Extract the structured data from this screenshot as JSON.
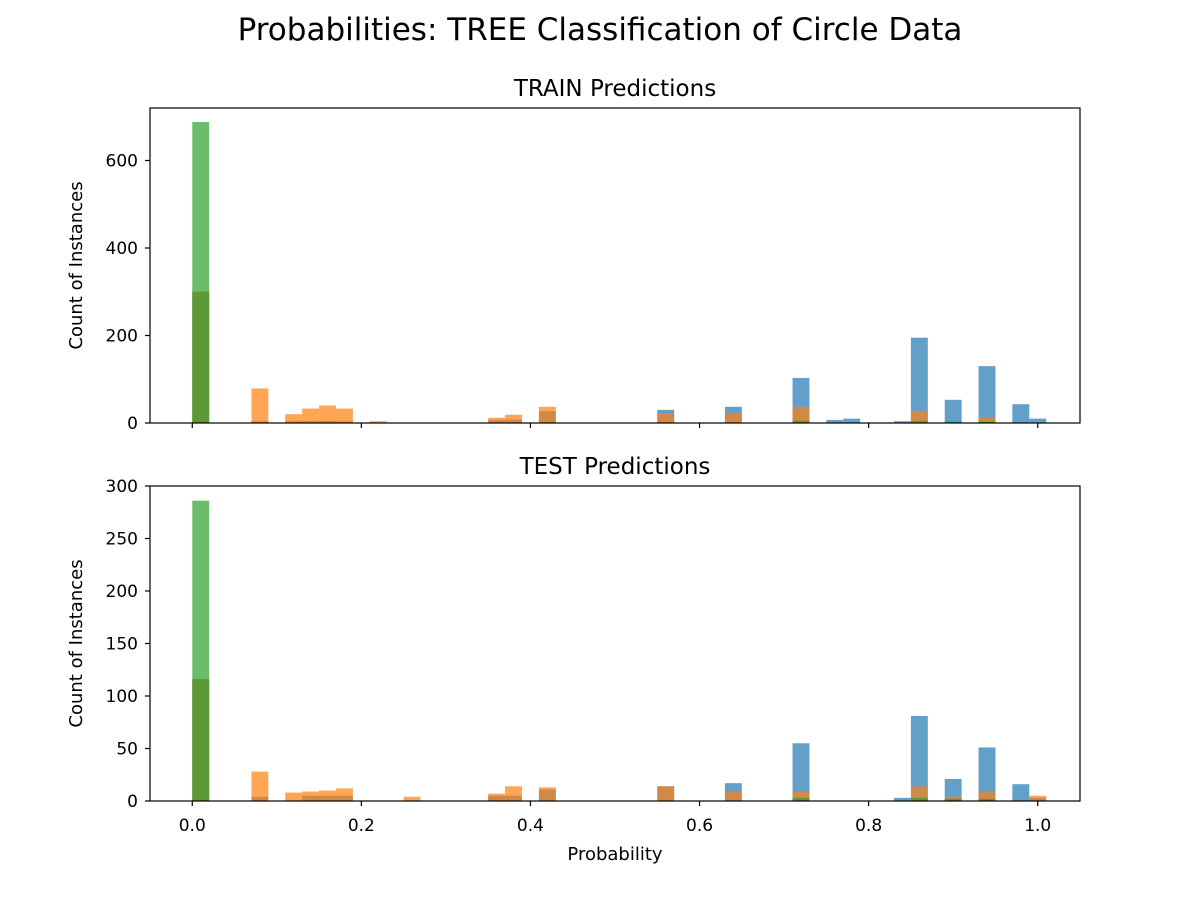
{
  "figure": {
    "suptitle": "Probabilities:  TREE Classification of Circle Data"
  },
  "colors": {
    "blue": "#1f77b4",
    "orange": "#ff7f0e",
    "green": "#2ca02c",
    "bar_alpha": 0.7
  },
  "chart_data": [
    {
      "type": "bar",
      "title": "TRAIN Predictions",
      "xlabel": "",
      "ylabel": "Count of Instances",
      "xlim": [
        -0.05,
        1.05
      ],
      "ylim": [
        0,
        720
      ],
      "yticks": [
        0,
        200,
        400,
        600
      ],
      "xticks": [
        0.0,
        0.2,
        0.4,
        0.6,
        0.8,
        1.0
      ],
      "show_xtick_labels": false,
      "bin_width": 0.02,
      "series": [
        {
          "color": "blue",
          "bins": [
            [
              0.0,
              300
            ],
            [
              0.07,
              4
            ],
            [
              0.11,
              4
            ],
            [
              0.13,
              5
            ],
            [
              0.15,
              5
            ],
            [
              0.17,
              4
            ],
            [
              0.35,
              7
            ],
            [
              0.37,
              8
            ],
            [
              0.41,
              27
            ],
            [
              0.55,
              30
            ],
            [
              0.63,
              37
            ],
            [
              0.71,
              103
            ],
            [
              0.75,
              7
            ],
            [
              0.77,
              10
            ],
            [
              0.83,
              4
            ],
            [
              0.85,
              195
            ],
            [
              0.89,
              53
            ],
            [
              0.93,
              130
            ],
            [
              0.97,
              43
            ],
            [
              0.99,
              10
            ]
          ]
        },
        {
          "color": "orange",
          "bins": [
            [
              0.0,
              300
            ],
            [
              0.07,
              79
            ],
            [
              0.11,
              20
            ],
            [
              0.13,
              33
            ],
            [
              0.15,
              40
            ],
            [
              0.17,
              33
            ],
            [
              0.21,
              4
            ],
            [
              0.35,
              12
            ],
            [
              0.37,
              19
            ],
            [
              0.41,
              37
            ],
            [
              0.55,
              22
            ],
            [
              0.63,
              22
            ],
            [
              0.71,
              37
            ],
            [
              0.85,
              28
            ],
            [
              0.93,
              13
            ]
          ]
        },
        {
          "color": "green",
          "bins": [
            [
              0.0,
              688
            ],
            [
              0.71,
              5
            ],
            [
              0.85,
              4
            ],
            [
              0.89,
              3
            ],
            [
              0.93,
              3
            ]
          ]
        }
      ]
    },
    {
      "type": "bar",
      "title": "TEST Predictions",
      "xlabel": "Probability",
      "ylabel": "Count of Instances",
      "xlim": [
        -0.05,
        1.05
      ],
      "ylim": [
        0,
        300
      ],
      "yticks": [
        0,
        50,
        100,
        150,
        200,
        250,
        300
      ],
      "xticks": [
        0.0,
        0.2,
        0.4,
        0.6,
        0.8,
        1.0
      ],
      "show_xtick_labels": true,
      "bin_width": 0.02,
      "series": [
        {
          "color": "blue",
          "bins": [
            [
              0.0,
              116
            ],
            [
              0.07,
              4
            ],
            [
              0.13,
              5
            ],
            [
              0.15,
              5
            ],
            [
              0.17,
              5
            ],
            [
              0.35,
              5
            ],
            [
              0.37,
              5
            ],
            [
              0.41,
              11
            ],
            [
              0.55,
              14
            ],
            [
              0.63,
              17
            ],
            [
              0.71,
              55
            ],
            [
              0.83,
              3
            ],
            [
              0.85,
              81
            ],
            [
              0.89,
              21
            ],
            [
              0.93,
              51
            ],
            [
              0.97,
              16
            ],
            [
              0.99,
              3
            ]
          ]
        },
        {
          "color": "orange",
          "bins": [
            [
              0.0,
              116
            ],
            [
              0.07,
              28
            ],
            [
              0.11,
              8
            ],
            [
              0.13,
              9
            ],
            [
              0.15,
              10
            ],
            [
              0.17,
              12
            ],
            [
              0.25,
              4
            ],
            [
              0.35,
              7
            ],
            [
              0.37,
              14
            ],
            [
              0.41,
              13
            ],
            [
              0.55,
              14
            ],
            [
              0.63,
              9
            ],
            [
              0.71,
              9
            ],
            [
              0.85,
              14
            ],
            [
              0.89,
              4
            ],
            [
              0.93,
              9
            ],
            [
              0.99,
              5
            ]
          ]
        },
        {
          "color": "green",
          "bins": [
            [
              0.0,
              286
            ],
            [
              0.71,
              3
            ],
            [
              0.85,
              3
            ],
            [
              0.89,
              2
            ],
            [
              0.93,
              2
            ]
          ]
        }
      ]
    }
  ]
}
